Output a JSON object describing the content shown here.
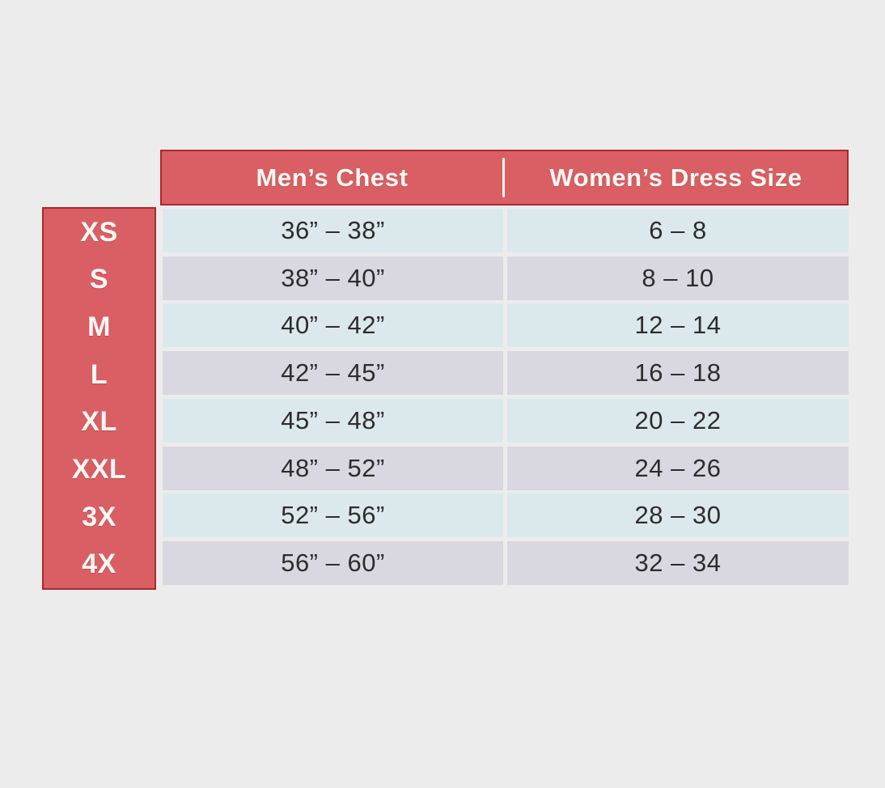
{
  "colors": {
    "page_bg": "#edecec",
    "header_bg": "#d95f64",
    "header_border": "#a8292f",
    "header_text": "#fbf7f4",
    "row_blue": "#dce9ec",
    "row_lavender": "#d9d8e1",
    "body_text": "#2e2d2c"
  },
  "chart_data": {
    "type": "table",
    "title": "",
    "columns": [
      "Men’s Chest",
      "Women’s Dress Size"
    ],
    "row_labels": [
      "XS",
      "S",
      "M",
      "L",
      "XL",
      "XXL",
      "3X",
      "4X"
    ],
    "rows": [
      [
        "36” – 38”",
        "6 – 8"
      ],
      [
        "38” – 40”",
        "8 – 10"
      ],
      [
        "40” – 42”",
        "12 – 14"
      ],
      [
        "42” – 45”",
        "16 – 18"
      ],
      [
        "45” – 48”",
        "20 – 22"
      ],
      [
        "48” – 52”",
        "24 – 26"
      ],
      [
        "52” – 56”",
        "28 – 30"
      ],
      [
        "56” – 60”",
        "32 – 34"
      ]
    ],
    "layout": {
      "stripe_pattern": [
        "blue",
        "lavender"
      ],
      "row_label_position": "left",
      "header_position": "top"
    }
  }
}
